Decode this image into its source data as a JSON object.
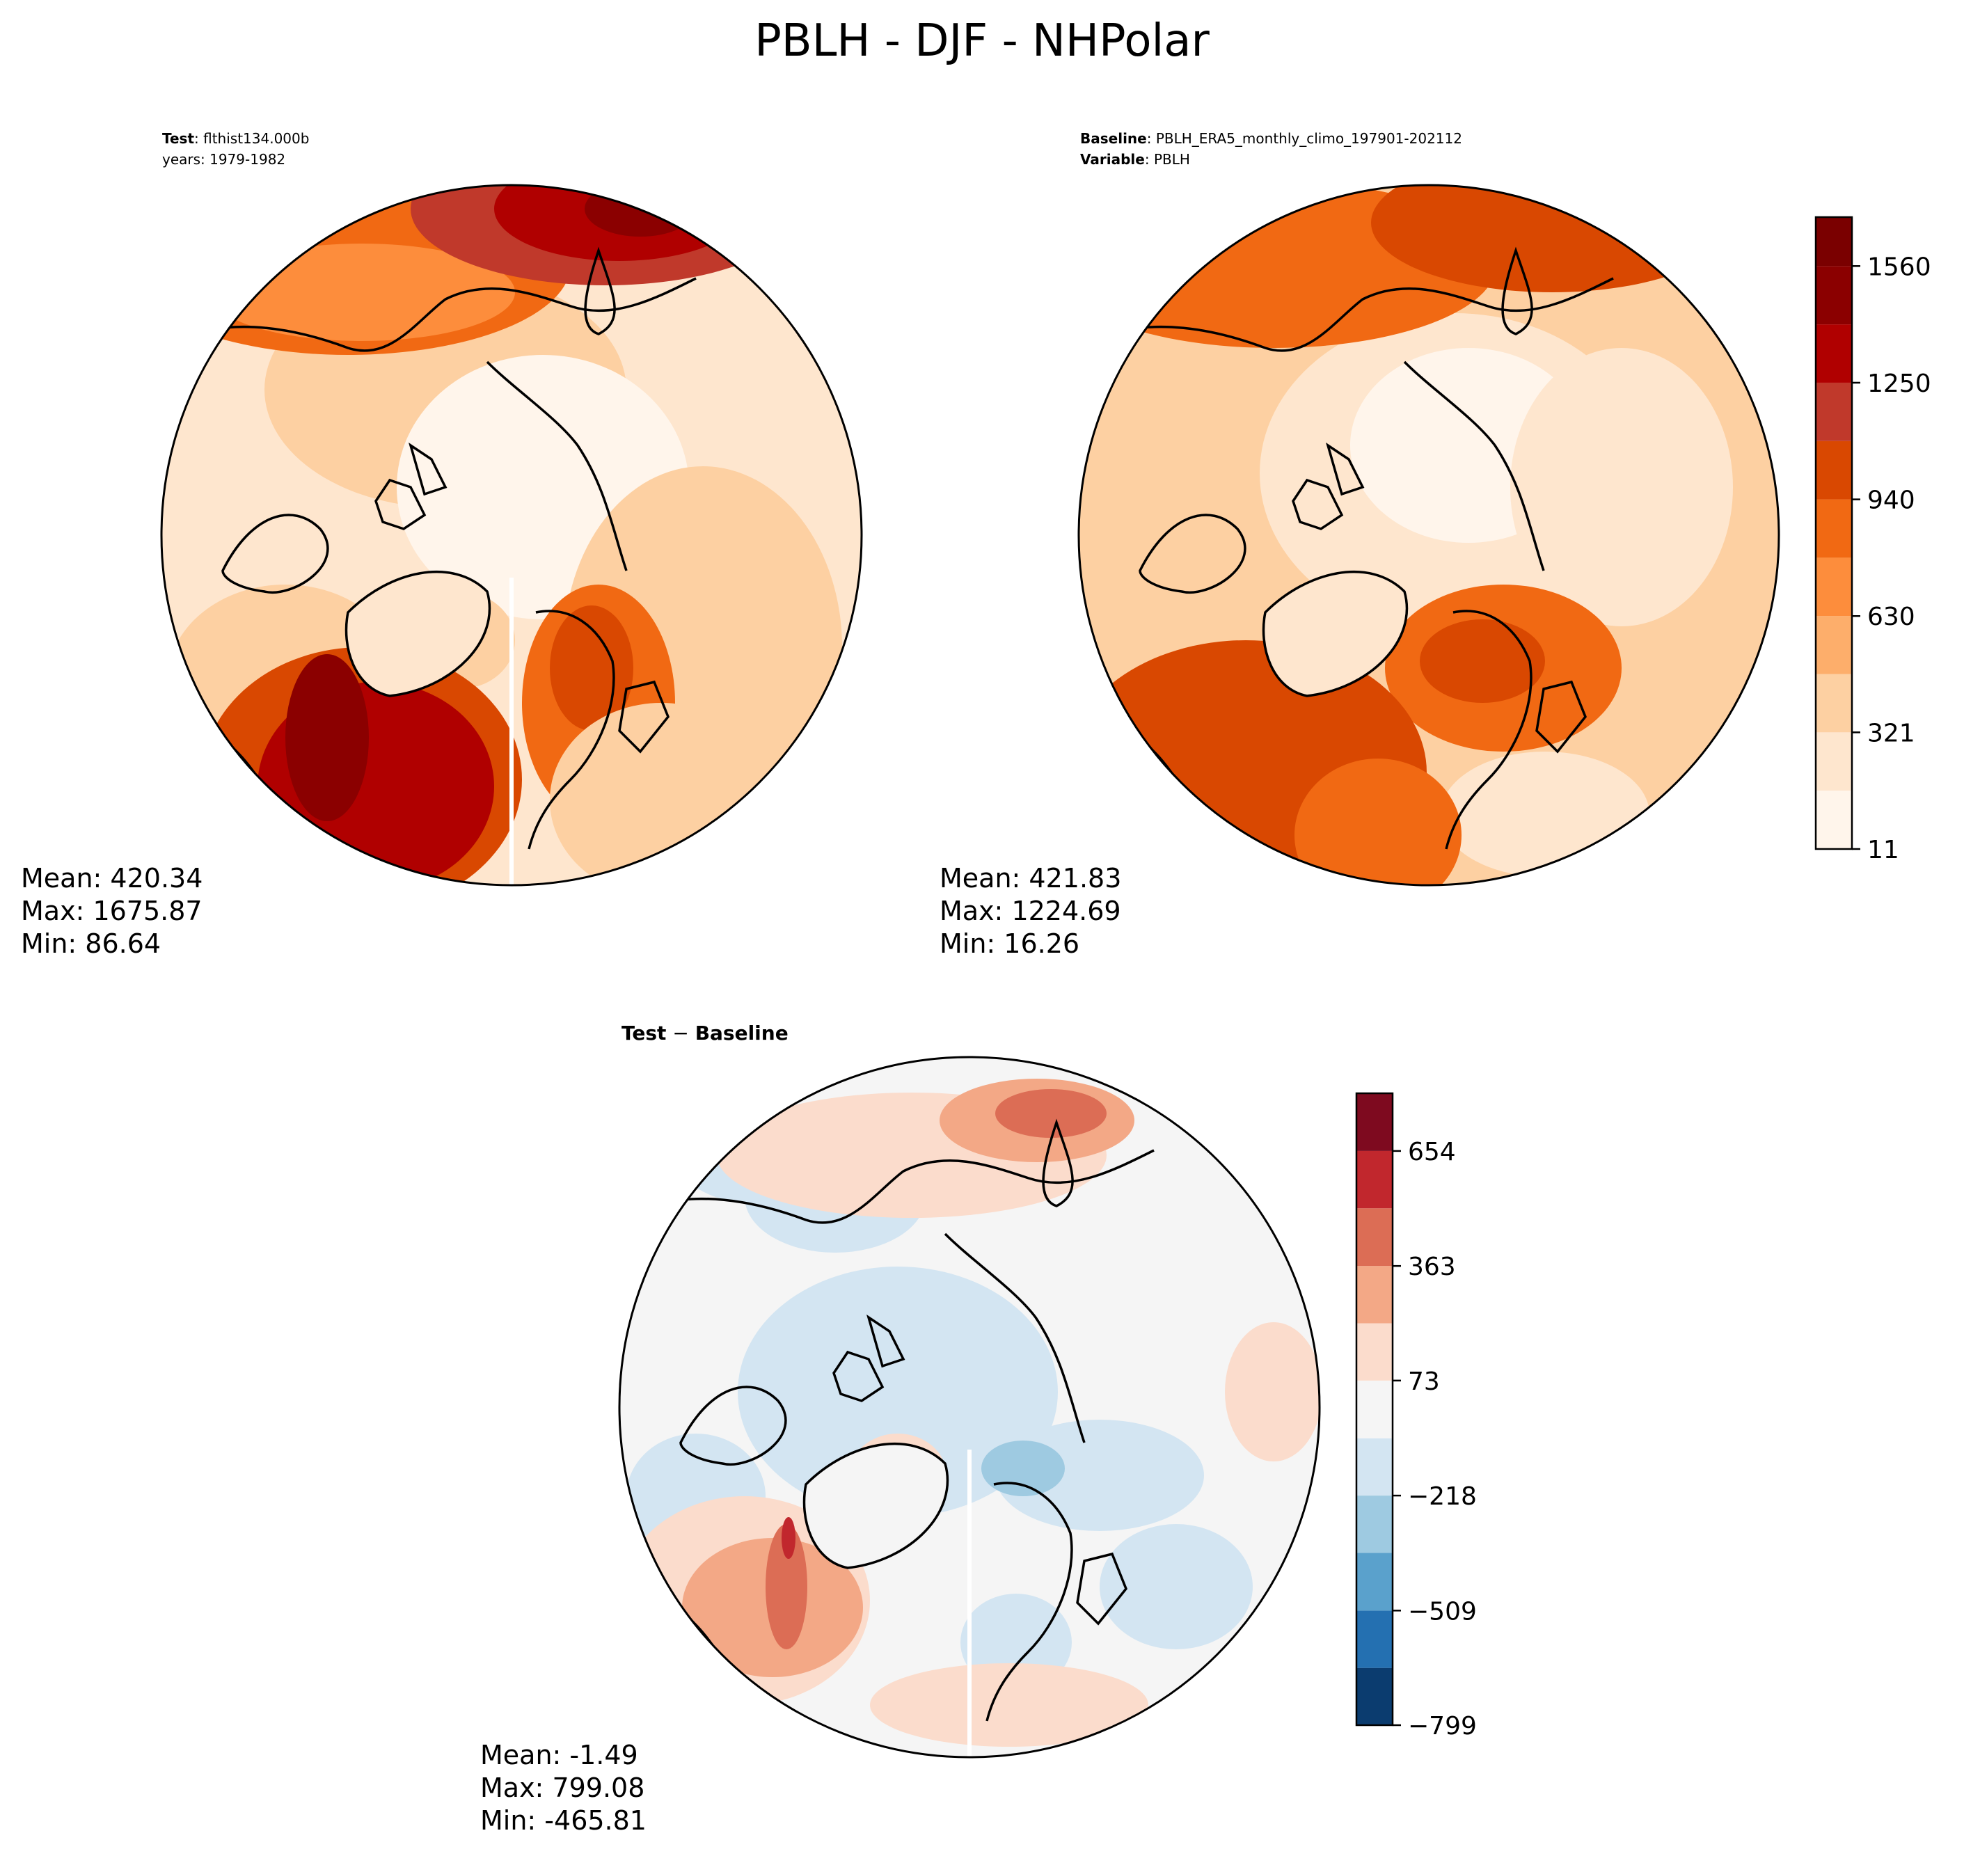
{
  "chart_data": {
    "type": "heatmap",
    "title": "PBLH - DJF - NHPolar",
    "panels": [
      {
        "id": "test",
        "header_lines": [
          {
            "label": "Test",
            "text": ": flthist134.000b"
          },
          {
            "label": "",
            "text": "years: 1979-1982"
          }
        ],
        "stats": {
          "mean": "Mean: 420.34",
          "max": "Max: 1675.87",
          "min": "Min: 86.64"
        }
      },
      {
        "id": "baseline",
        "header_lines": [
          {
            "label": "Baseline",
            "text": ": PBLH_ERA5_monthly_climo_197901-202112"
          },
          {
            "label": "Variable",
            "text": ": PBLH"
          }
        ],
        "stats": {
          "mean": "Mean: 421.83",
          "max": "Max: 1224.69",
          "min": "Min: 16.26"
        }
      },
      {
        "id": "diff",
        "header_lines": [
          {
            "label": "Test",
            "text": " − ",
            "label2": "Baseline"
          }
        ],
        "stats": {
          "mean": "Mean: -1.49",
          "max": "Max: 799.08",
          "min": "Min: -465.81"
        }
      }
    ],
    "colorbars": [
      {
        "id": "main",
        "range": [
          11,
          1690
        ],
        "levels": [
          11,
          166,
          321,
          476,
          630,
          785,
          940,
          1095,
          1250,
          1405,
          1560,
          1690
        ],
        "colors": [
          "#fff5eb",
          "#fee6ce",
          "#fdd0a2",
          "#fdae6b",
          "#fd8d3c",
          "#f16913",
          "#d94801",
          "#c0392b",
          "#b00000",
          "#8b0000",
          "#7a0000"
        ],
        "tick_values": [
          11,
          321,
          630,
          940,
          1250,
          1560
        ],
        "tick_labels": [
          "11",
          "321",
          "630",
          "940",
          "1250",
          "1560"
        ]
      },
      {
        "id": "diff",
        "range": [
          -799,
          800
        ],
        "levels": [
          -799,
          -654,
          -509,
          -363,
          -218,
          -73,
          73,
          218,
          363,
          509,
          654,
          800
        ],
        "colors": [
          "#0b3c6f",
          "#2470b1",
          "#5aa1cc",
          "#9ecae1",
          "#d3e5f2",
          "#f5f5f5",
          "#fbdccc",
          "#f3a886",
          "#dc6d55",
          "#c1272d",
          "#7e0a1f"
        ],
        "tick_values": [
          -799,
          -509,
          -218,
          73,
          363,
          654
        ],
        "tick_labels": [
          "−799",
          "−509",
          "−218",
          "73",
          "363",
          "654"
        ]
      }
    ]
  }
}
